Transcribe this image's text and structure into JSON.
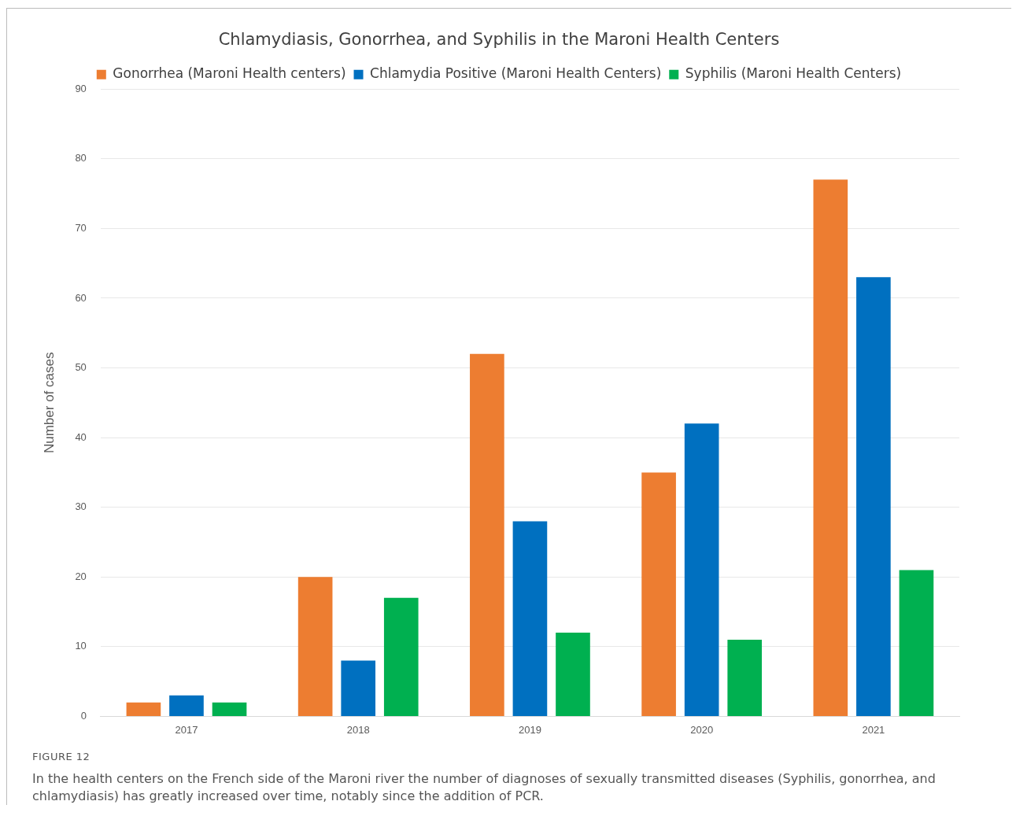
{
  "chart_data": {
    "type": "bar",
    "title": "Chlamydiasis, Gonorrhea, and Syphilis in the Maroni Health Centers",
    "ylabel": "Number of cases",
    "categories": [
      "2017",
      "2018",
      "2019",
      "2020",
      "2021"
    ],
    "series": [
      {
        "name": "Gonorrhea (Maroni Health centers)",
        "color": "#ed7d31",
        "values": [
          2,
          20,
          52,
          35,
          77
        ]
      },
      {
        "name": "Chlamydia Positive (Maroni Health Centers)",
        "color": "#0070c0",
        "values": [
          3,
          8,
          28,
          42,
          63
        ]
      },
      {
        "name": "Syphilis (Maroni Health Centers)",
        "color": "#00b050",
        "values": [
          2,
          17,
          12,
          11,
          21
        ]
      }
    ],
    "ylim": [
      0,
      90
    ],
    "yticks": [
      0,
      10,
      20,
      30,
      40,
      50,
      60,
      70,
      80,
      90
    ],
    "grid": "y",
    "legend": "top",
    "annotations": [
      "FIGURE 12",
      "In the health centers on the French side of the Maroni river the number of diagnoses of sexually transmitted diseases (Syphilis, gonorrhea, and chlamydiasis) has greatly increased over time, notably since the addition of PCR."
    ]
  }
}
